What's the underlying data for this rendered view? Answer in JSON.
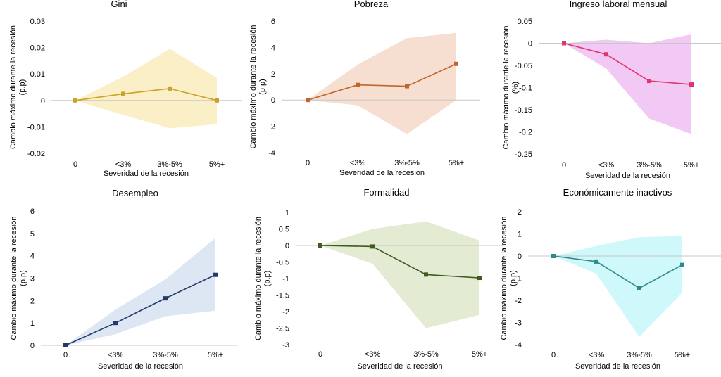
{
  "chart_data": [
    {
      "type": "line",
      "title": "Gini",
      "xlabel": "Severidad de la recesión",
      "ylabel": [
        "Cambio máximo durante la recesión",
        "(p.p)"
      ],
      "categories": [
        "0",
        "<3%",
        "3%-5%",
        "5%+"
      ],
      "ylim": [
        -0.02,
        0.03
      ],
      "yticks": [
        -0.02,
        -0.01,
        0,
        0.01,
        0.02,
        0.03
      ],
      "ytick_labels": [
        "-0.02",
        "-0.01",
        "0",
        "0.01",
        "0.02",
        "0.03"
      ],
      "values": [
        0,
        0.0025,
        0.0045,
        0
      ],
      "ci_upper": [
        0,
        0.009,
        0.0195,
        0.0085
      ],
      "ci_lower": [
        0,
        -0.0055,
        -0.0105,
        -0.009
      ],
      "line_color": "#C9A227",
      "band_color": "#FBEFC8"
    },
    {
      "type": "line",
      "title": "Pobreza",
      "xlabel": "Severidad de la recesión",
      "ylabel": [
        "Cambio máximo durante la recesión",
        "(p.p)"
      ],
      "categories": [
        "0",
        "<3%",
        "3%-5%",
        "5%+"
      ],
      "ylim": [
        -4,
        6
      ],
      "yticks": [
        -4,
        -2,
        0,
        2,
        4,
        6
      ],
      "ytick_labels": [
        "-4",
        "-2",
        "0",
        "2",
        "4",
        "6"
      ],
      "values": [
        0,
        1.15,
        1.05,
        2.75
      ],
      "ci_upper": [
        0,
        2.7,
        4.7,
        5.1
      ],
      "ci_lower": [
        0,
        -0.4,
        -2.6,
        0
      ],
      "line_color": "#C0652B",
      "band_color": "#F6DFD0"
    },
    {
      "type": "line",
      "title": "Ingreso laboral mensual",
      "xlabel": "Severidad de la recesión",
      "ylabel": [
        "Cambio máximo durante la recesión",
        "(%)"
      ],
      "categories": [
        "0",
        "<3%",
        "3%-5%",
        "5%+"
      ],
      "ylim": [
        -0.25,
        0.05
      ],
      "yticks": [
        -0.25,
        -0.2,
        -0.15,
        -0.1,
        -0.05,
        0,
        0.05
      ],
      "ytick_labels": [
        "-0.25",
        "-0.2",
        "-0.15",
        "-0.1",
        "-0.05",
        "0",
        "0.05"
      ],
      "values": [
        0,
        -0.025,
        -0.085,
        -0.093
      ],
      "ci_upper": [
        0,
        0.008,
        0.0,
        0.02
      ],
      "ci_lower": [
        0,
        -0.057,
        -0.17,
        -0.205
      ],
      "line_color": "#E0356F",
      "band_color": "#F2C8F4"
    },
    {
      "type": "line",
      "title": "Desempleo",
      "xlabel": "Severidad de la recesión",
      "ylabel": [
        "Cambio máximo durante la recesión",
        "(p.p)"
      ],
      "categories": [
        "0",
        "<3%",
        "3%-5%",
        "5%+"
      ],
      "ylim": [
        0,
        6
      ],
      "yticks": [
        0,
        1,
        2,
        3,
        4,
        5,
        6
      ],
      "ytick_labels": [
        "0",
        "1",
        "2",
        "3",
        "4",
        "5",
        "6"
      ],
      "values": [
        0,
        1.0,
        2.1,
        3.15
      ],
      "ci_upper": [
        0,
        1.6,
        2.95,
        4.8
      ],
      "ci_lower": [
        0,
        0.5,
        1.3,
        1.55
      ],
      "line_color": "#233A6B",
      "band_color": "#DDE6F3"
    },
    {
      "type": "line",
      "title": "Formalidad",
      "xlabel": "Severidad de la recesión",
      "ylabel": [
        "Cambio máximo durante la recesión",
        "(p.p)"
      ],
      "categories": [
        "0",
        "<3%",
        "3%-5%",
        "5%+"
      ],
      "ylim": [
        -3,
        1
      ],
      "yticks": [
        -3,
        -2.5,
        -2,
        -1.5,
        -1,
        -0.5,
        0,
        0.5,
        1
      ],
      "ytick_labels": [
        "-3",
        "-2.5",
        "-2",
        "-1.5",
        "-1",
        "-0.5",
        "0",
        "0.5",
        "1"
      ],
      "values": [
        0,
        -0.03,
        -0.88,
        -0.98
      ],
      "ci_upper": [
        0,
        0.5,
        0.73,
        0.15
      ],
      "ci_lower": [
        0,
        -0.55,
        -2.5,
        -2.1
      ],
      "line_color": "#3E5B22",
      "band_color": "#E3ECD2"
    },
    {
      "type": "line",
      "title": "Económicamente inactivos",
      "xlabel": "Severidad de la recesión",
      "ylabel": [
        "Cambio máximo durante la recesión",
        "(p.p)"
      ],
      "categories": [
        "0",
        "<3%",
        "3%-5%",
        "5%+"
      ],
      "ylim": [
        -4,
        2
      ],
      "yticks": [
        -4,
        -3,
        -2,
        -1,
        0,
        1,
        2
      ],
      "ytick_labels": [
        "-4",
        "-3",
        "-2",
        "-1",
        "0",
        "1",
        "2"
      ],
      "values": [
        0,
        -0.25,
        -1.45,
        -0.4
      ],
      "ci_upper": [
        0,
        0.45,
        0.85,
        0.9
      ],
      "ci_lower": [
        0,
        -0.8,
        -3.65,
        -1.65
      ],
      "line_color": "#2E8B8A",
      "band_color": "#CFF8FA"
    }
  ]
}
